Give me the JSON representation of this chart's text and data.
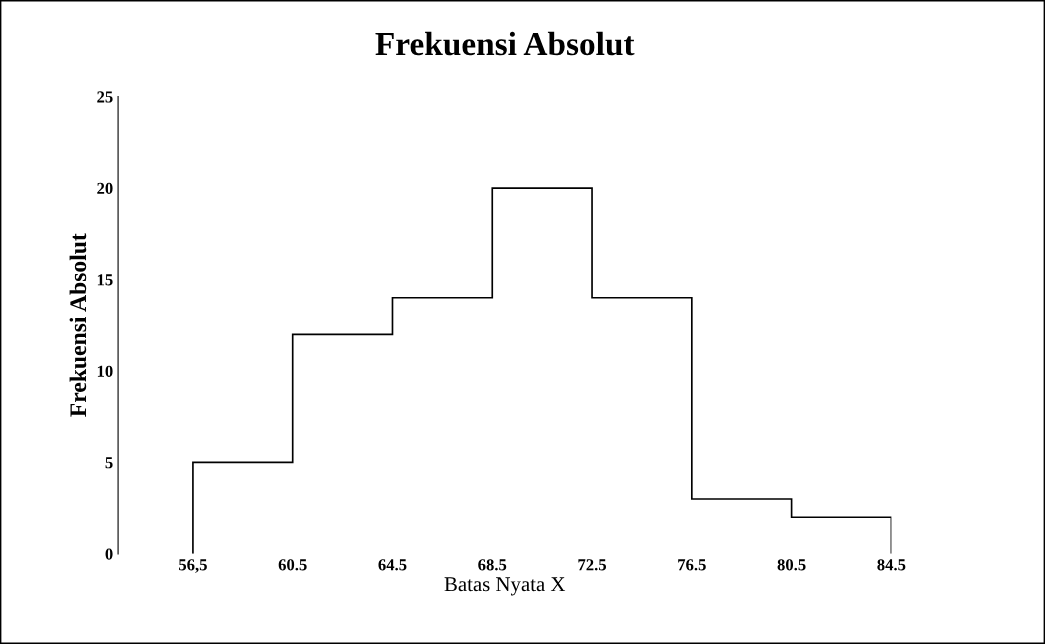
{
  "chart_data": {
    "type": "histogram",
    "title": "Frekuensi Absolut",
    "xlabel": "Batas Nyata X",
    "ylabel": "Frekuensi Absolut",
    "bins": [
      56.5,
      60.5,
      64.5,
      68.5,
      72.5,
      76.5,
      80.5,
      84.5
    ],
    "values": [
      5,
      12,
      14,
      20,
      14,
      3,
      2
    ],
    "color": "#000000",
    "xlim": [
      53.5,
      84.5
    ],
    "xticks": [
      {
        "value": 56.5,
        "label": "56,5"
      },
      {
        "value": 60.5,
        "label": "60.5"
      },
      {
        "value": 64.5,
        "label": "64.5"
      },
      {
        "value": 68.5,
        "label": "68.5"
      },
      {
        "value": 72.5,
        "label": "72.5"
      },
      {
        "value": 76.5,
        "label": "76.5"
      },
      {
        "value": 80.5,
        "label": "80.5"
      },
      {
        "value": 84.5,
        "label": "84.5"
      }
    ],
    "ylim": [
      0,
      25
    ],
    "yticks": [
      0,
      5,
      10,
      15,
      20,
      25
    ],
    "grid": false
  }
}
